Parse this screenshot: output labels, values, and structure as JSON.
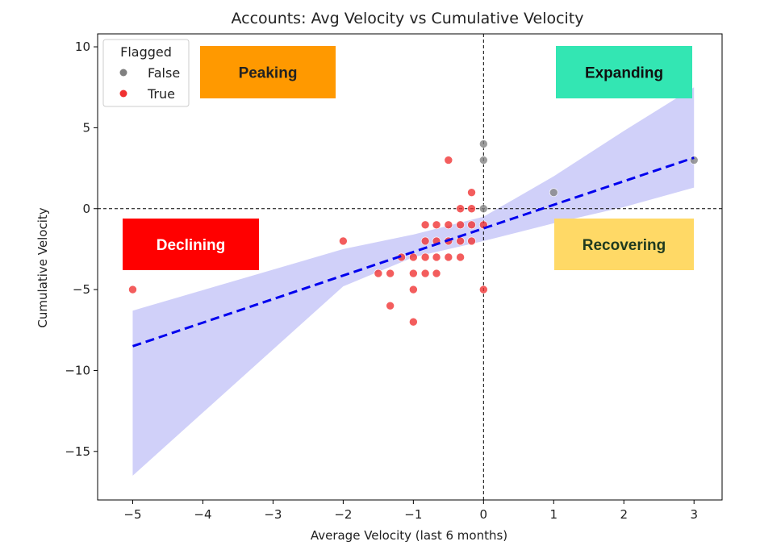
{
  "chart_data": {
    "type": "scatter",
    "title": "Accounts: Avg Velocity vs Cumulative Velocity",
    "xlabel": "Average Velocity (last 6 months)",
    "ylabel": "Cumulative Velocity",
    "xlim": [
      -5.5,
      3.4
    ],
    "ylim": [
      -18,
      10.8
    ],
    "xticks": [
      -5,
      -4,
      -3,
      -2,
      -1,
      0,
      1,
      2,
      3
    ],
    "yticks": [
      -15,
      -10,
      -5,
      0,
      5,
      10
    ],
    "grid": false,
    "reference_lines": {
      "x": 0,
      "y": 0,
      "style": "dashed",
      "color": "#000000"
    },
    "legend": {
      "title": "Flagged",
      "placement": "top-left",
      "entries": [
        {
          "label": "False",
          "color": "#808080"
        },
        {
          "label": "True",
          "color": "#f03030"
        }
      ]
    },
    "series": [
      {
        "name": "False",
        "color": "#808080",
        "points": [
          [
            0,
            4
          ],
          [
            0,
            3
          ],
          [
            0,
            0
          ],
          [
            1,
            1
          ],
          [
            3,
            3
          ]
        ]
      },
      {
        "name": "True",
        "color": "#f03030",
        "points": [
          [
            -5,
            -5
          ],
          [
            -2,
            -2
          ],
          [
            -1.5,
            -4
          ],
          [
            -1.33,
            -4
          ],
          [
            -1.33,
            -6
          ],
          [
            -1.17,
            -3
          ],
          [
            -1,
            -3
          ],
          [
            -1,
            -4
          ],
          [
            -1,
            -5
          ],
          [
            -1,
            -7
          ],
          [
            -0.83,
            -1
          ],
          [
            -0.83,
            -2
          ],
          [
            -0.83,
            -3
          ],
          [
            -0.83,
            -4
          ],
          [
            -0.67,
            -1
          ],
          [
            -0.67,
            -2
          ],
          [
            -0.67,
            -3
          ],
          [
            -0.67,
            -4
          ],
          [
            -0.5,
            3
          ],
          [
            -0.5,
            -1
          ],
          [
            -0.5,
            -2
          ],
          [
            -0.5,
            -3
          ],
          [
            -0.33,
            -1
          ],
          [
            -0.33,
            -2
          ],
          [
            -0.33,
            -3
          ],
          [
            -0.33,
            0
          ],
          [
            -0.17,
            1
          ],
          [
            -0.17,
            0
          ],
          [
            -0.17,
            -1
          ],
          [
            -0.17,
            -2
          ],
          [
            0,
            -5
          ],
          [
            0,
            -1
          ]
        ]
      }
    ],
    "regression": {
      "x_range": [
        -5,
        3
      ],
      "y_at_x_range": [
        -8.5,
        3.15
      ],
      "line_color": "#0000ee",
      "line_style": "dashed",
      "ci_color": "#c8c8f8",
      "ci_upper": [
        [
          -5,
          -6.3
        ],
        [
          -2,
          -2.5
        ],
        [
          -1,
          -1.6
        ],
        [
          0,
          -0.5
        ],
        [
          1,
          2.0
        ],
        [
          2,
          4.8
        ],
        [
          3,
          7.5
        ]
      ],
      "ci_lower": [
        [
          -5,
          -16.5
        ],
        [
          -2,
          -4.8
        ],
        [
          -1,
          -3.0
        ],
        [
          0,
          -2.0
        ],
        [
          1,
          -0.9
        ],
        [
          2,
          0.1
        ],
        [
          3,
          1.3
        ]
      ]
    },
    "annotations": [
      {
        "label": "Peaking",
        "quadrant": "top-left",
        "bg": "#ff9900",
        "color": "#222222"
      },
      {
        "label": "Expanding",
        "quadrant": "top-right",
        "bg": "#33e6b3",
        "color": "#111111"
      },
      {
        "label": "Declining",
        "quadrant": "bottom-left",
        "bg": "#ff0000",
        "color": "#ffffff"
      },
      {
        "label": "Recovering",
        "quadrant": "bottom-right",
        "bg": "#ffd966",
        "color": "#1f3a1f"
      }
    ]
  }
}
